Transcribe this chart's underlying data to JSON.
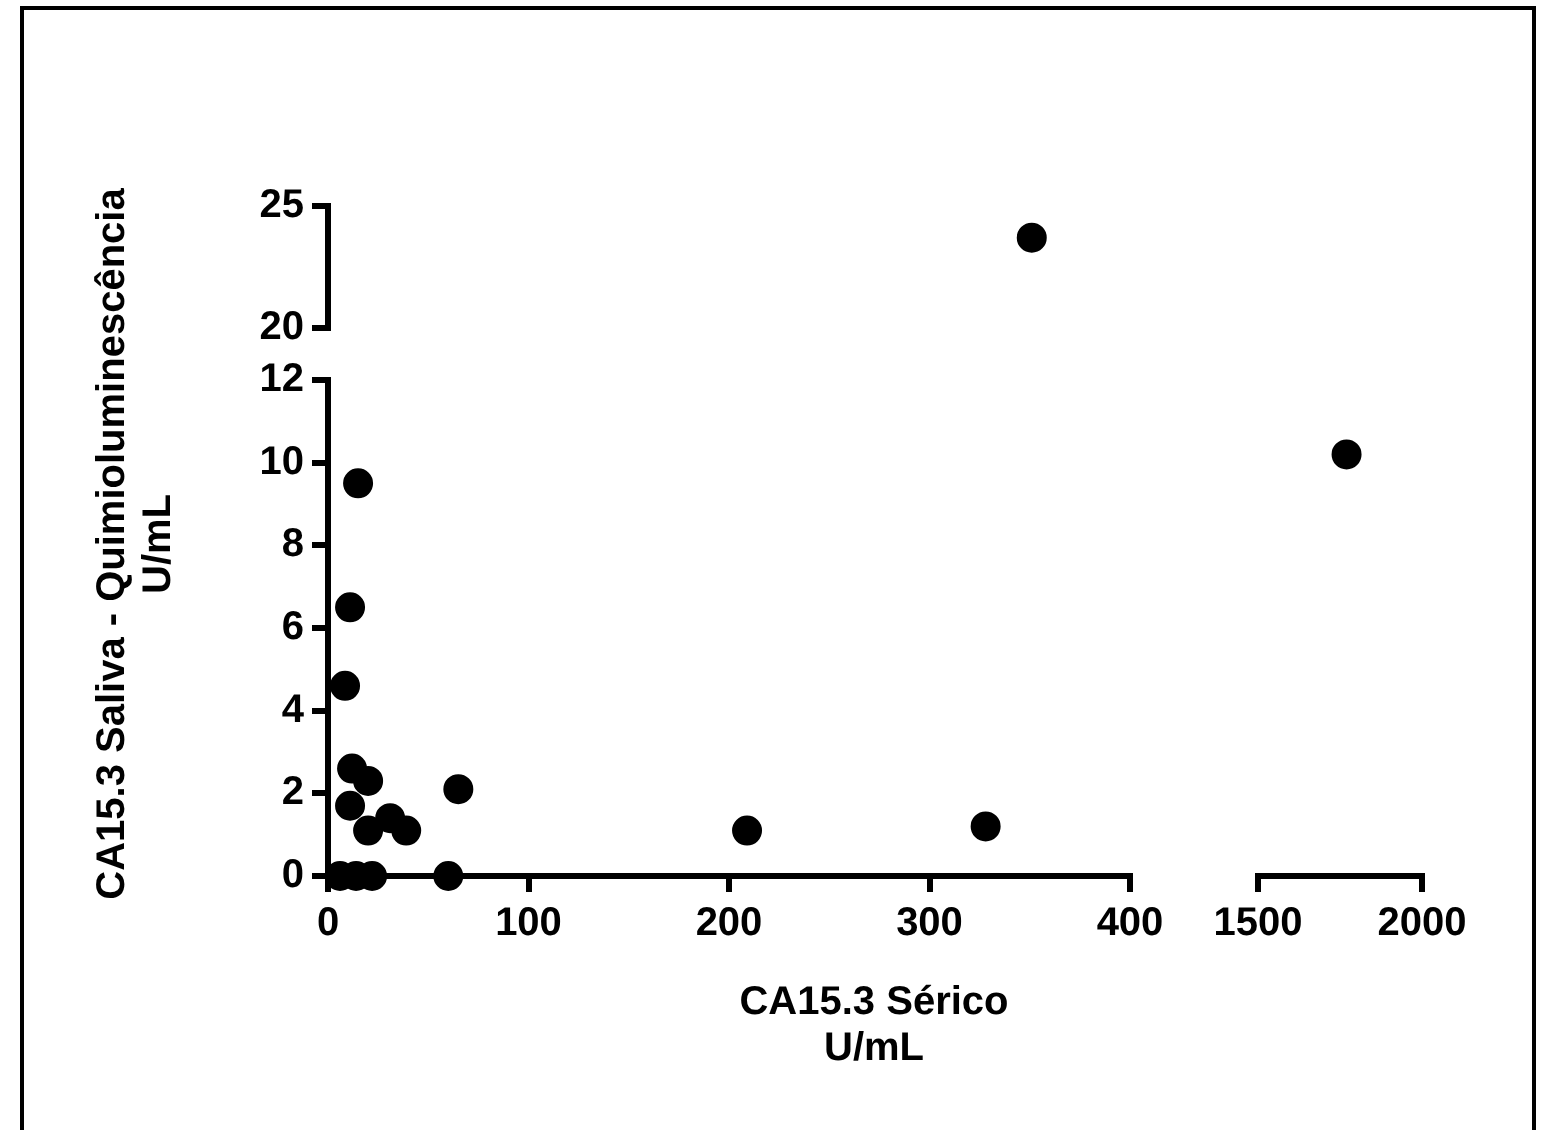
{
  "chart_data": [
    {
      "type": "scatter",
      "xlabel": "CA15.3 Sérico\nU/mL",
      "ylabel": "CA15.3 Saliva - Quimioluminescência\nU/mL",
      "marker": "circle",
      "color": "#000000",
      "x": [
        15,
        11,
        8.5,
        12,
        20,
        11,
        20,
        31,
        39,
        65,
        209,
        328,
        6,
        14,
        22,
        60
      ],
      "values": [
        9.5,
        6.5,
        4.6,
        2.6,
        2.3,
        1.7,
        1.1,
        1.4,
        1.1,
        2.1,
        1.1,
        1.2,
        0,
        0,
        0,
        0
      ],
      "xlim": [
        0,
        400
      ],
      "xticks": [
        0,
        100,
        200,
        300,
        400
      ],
      "ylim": [
        0,
        12
      ],
      "yticks": [
        0,
        2,
        4,
        6,
        8,
        10,
        12
      ]
    },
    {
      "type": "scatter",
      "marker": "circle",
      "color": "#000000",
      "x": [
        351
      ],
      "values": [
        23.7
      ],
      "xlim": [
        0,
        400
      ],
      "ylim": [
        20,
        25
      ],
      "yticks": [
        20,
        25
      ],
      "tick_labels": "y"
    },
    {
      "type": "scatter",
      "marker": "circle",
      "color": "#000000",
      "x": [
        1770
      ],
      "values": [
        10.2
      ],
      "xlim": [
        1500,
        2000
      ],
      "xticks": [
        1500,
        2000
      ],
      "ylim": [
        0,
        12
      ],
      "tick_labels": "x"
    }
  ]
}
